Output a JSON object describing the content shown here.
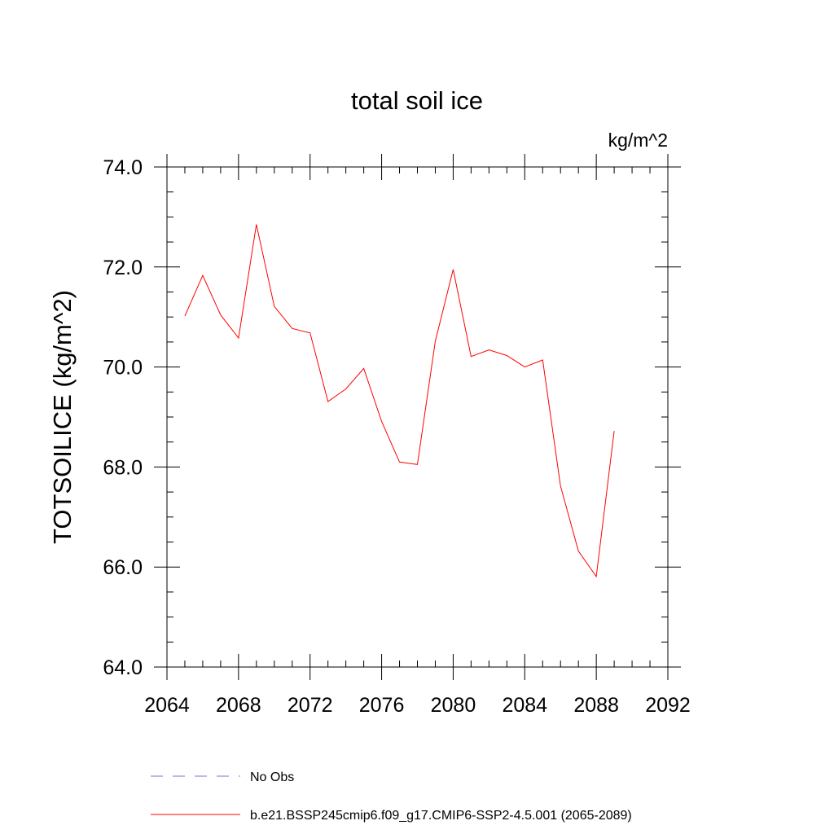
{
  "chart_data": {
    "type": "line",
    "title": "total soil ice",
    "units_label": "kg/m^2",
    "ylabel": "TOTSOILICE  (kg/m^2)",
    "xlabel": "",
    "xlim": [
      2064,
      2092
    ],
    "ylim": [
      64.0,
      74.0
    ],
    "x_ticks": [
      2064,
      2068,
      2072,
      2076,
      2080,
      2084,
      2088,
      2092
    ],
    "x_tick_labels": [
      "2064",
      "2068",
      "2072",
      "2076",
      "2080",
      "2084",
      "2088",
      "2092"
    ],
    "y_ticks": [
      64,
      66,
      68,
      70,
      72,
      74
    ],
    "y_tick_labels": [
      "64.0",
      "66.0",
      "68.0",
      "70.0",
      "72.0",
      "74.0"
    ],
    "x_minor_step": 1,
    "y_minor_step": 0.5,
    "grid": false,
    "series": [
      {
        "name": "b.e21.BSSP245cmip6.f09_g17.CMIP6-SSP2-4.5.001 (2065-2089)",
        "color": "#ff0000",
        "dash": "solid",
        "x": [
          2065,
          2066,
          2067,
          2068,
          2069,
          2070,
          2071,
          2072,
          2073,
          2074,
          2075,
          2076,
          2077,
          2078,
          2079,
          2080,
          2081,
          2082,
          2083,
          2084,
          2085,
          2086,
          2087,
          2088,
          2089
        ],
        "values": [
          71.02,
          71.83,
          71.04,
          70.58,
          72.85,
          71.21,
          70.77,
          70.68,
          69.31,
          69.56,
          69.97,
          68.91,
          68.1,
          68.05,
          70.52,
          71.95,
          70.21,
          70.34,
          70.23,
          70.0,
          70.14,
          67.62,
          66.32,
          65.81,
          68.72
        ]
      }
    ],
    "legend": {
      "placement": "bottom",
      "entries": [
        {
          "label": "No Obs",
          "color": "#7b6fc4",
          "dash": "dashed"
        },
        {
          "label": "b.e21.BSSP245cmip6.f09_g17.CMIP6-SSP2-4.5.001 (2065-2089)",
          "color": "#ff0000",
          "dash": "solid"
        }
      ]
    }
  }
}
